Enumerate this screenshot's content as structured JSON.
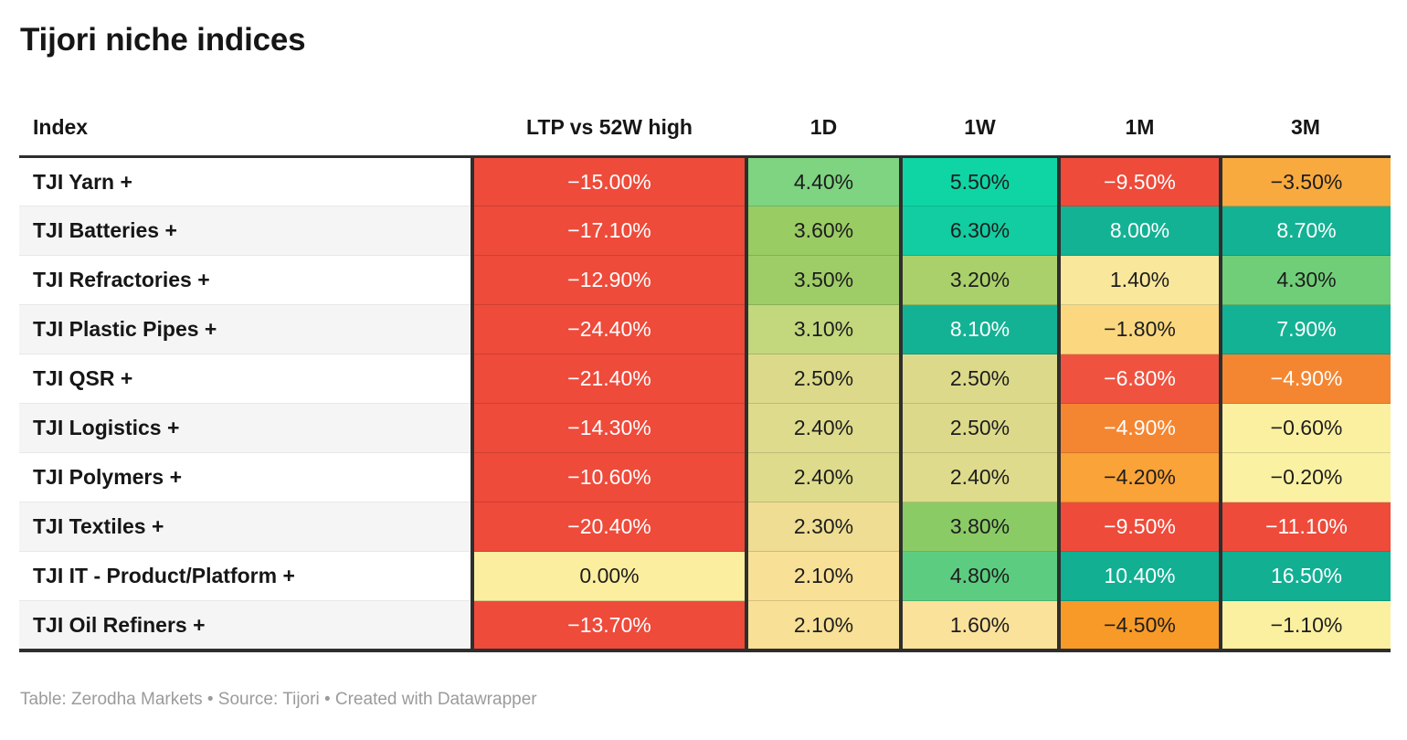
{
  "title": "Tijori niche indices",
  "footer": "Table: Zerodha Markets • Source: Tijori • Created with Datawrapper",
  "colors": {
    "accent_dark_border": "#2e2e2e",
    "negative_red": "#ee4b3b",
    "positive_teal": "#14b294",
    "neutral_yellow": "#fbee9e",
    "dark_text": "#1d1d1d",
    "light_text": "#ffffff",
    "row_stripe": "#f5f5f5",
    "footer_gray": "#9b9b9b"
  },
  "table": {
    "columns": [
      {
        "key": "index",
        "label": "Index"
      },
      {
        "key": "ltp-vs-52w-high",
        "label": "LTP vs 52W high"
      },
      {
        "key": "1d",
        "label": "1D"
      },
      {
        "key": "1w",
        "label": "1W"
      },
      {
        "key": "1m",
        "label": "1M"
      },
      {
        "key": "3m",
        "label": "3M"
      }
    ],
    "rows": [
      {
        "index": "TJI Yarn +",
        "cells": [
          {
            "v": "−15.00%",
            "bg": "#ee4b3b",
            "fg": "#ffffff"
          },
          {
            "v": "4.40%",
            "bg": "#7ed480",
            "fg": "#1d1d1d"
          },
          {
            "v": "5.50%",
            "bg": "#0fd5a5",
            "fg": "#1d1d1d"
          },
          {
            "v": "−9.50%",
            "bg": "#ee4b3b",
            "fg": "#ffffff"
          },
          {
            "v": "−3.50%",
            "bg": "#f9aa3f",
            "fg": "#1d1d1d"
          }
        ]
      },
      {
        "index": "TJI Batteries +",
        "cells": [
          {
            "v": "−17.10%",
            "bg": "#ee4b3b",
            "fg": "#ffffff"
          },
          {
            "v": "3.60%",
            "bg": "#9acc64",
            "fg": "#1d1d1d"
          },
          {
            "v": "6.30%",
            "bg": "#12cda1",
            "fg": "#1d1d1d"
          },
          {
            "v": "8.00%",
            "bg": "#14b294",
            "fg": "#ffffff"
          },
          {
            "v": "8.70%",
            "bg": "#14b294",
            "fg": "#ffffff"
          }
        ]
      },
      {
        "index": "TJI Refractories +",
        "cells": [
          {
            "v": "−12.90%",
            "bg": "#ee4b3b",
            "fg": "#ffffff"
          },
          {
            "v": "3.50%",
            "bg": "#9ecd67",
            "fg": "#1d1d1d"
          },
          {
            "v": "3.20%",
            "bg": "#aad06c",
            "fg": "#1d1d1d"
          },
          {
            "v": "1.40%",
            "bg": "#f9e79c",
            "fg": "#1d1d1d"
          },
          {
            "v": "4.30%",
            "bg": "#70ce78",
            "fg": "#1d1d1d"
          }
        ]
      },
      {
        "index": "TJI Plastic Pipes +",
        "cells": [
          {
            "v": "−24.40%",
            "bg": "#ee4b3b",
            "fg": "#ffffff"
          },
          {
            "v": "3.10%",
            "bg": "#c3d77d",
            "fg": "#1d1d1d"
          },
          {
            "v": "8.10%",
            "bg": "#14b294",
            "fg": "#ffffff"
          },
          {
            "v": "−1.80%",
            "bg": "#fbd87f",
            "fg": "#1d1d1d"
          },
          {
            "v": "7.90%",
            "bg": "#14b294",
            "fg": "#ffffff"
          }
        ]
      },
      {
        "index": "TJI QSR +",
        "cells": [
          {
            "v": "−21.40%",
            "bg": "#ee4b3b",
            "fg": "#ffffff"
          },
          {
            "v": "2.50%",
            "bg": "#dcda8a",
            "fg": "#1d1d1d"
          },
          {
            "v": "2.50%",
            "bg": "#dcda8a",
            "fg": "#1d1d1d"
          },
          {
            "v": "−6.80%",
            "bg": "#ef5340",
            "fg": "#ffffff"
          },
          {
            "v": "−4.90%",
            "bg": "#f58631",
            "fg": "#ffffff"
          }
        ]
      },
      {
        "index": "TJI Logistics +",
        "cells": [
          {
            "v": "−14.30%",
            "bg": "#ee4b3b",
            "fg": "#ffffff"
          },
          {
            "v": "2.40%",
            "bg": "#dedb8c",
            "fg": "#1d1d1d"
          },
          {
            "v": "2.50%",
            "bg": "#dcda8a",
            "fg": "#1d1d1d"
          },
          {
            "v": "−4.90%",
            "bg": "#f58631",
            "fg": "#ffffff"
          },
          {
            "v": "−0.60%",
            "bg": "#fbf0a0",
            "fg": "#1d1d1d"
          }
        ]
      },
      {
        "index": "TJI Polymers +",
        "cells": [
          {
            "v": "−10.60%",
            "bg": "#ee4b3b",
            "fg": "#ffffff"
          },
          {
            "v": "2.40%",
            "bg": "#dedb8c",
            "fg": "#1d1d1d"
          },
          {
            "v": "2.40%",
            "bg": "#dedb8c",
            "fg": "#1d1d1d"
          },
          {
            "v": "−4.20%",
            "bg": "#f9a338",
            "fg": "#1d1d1d"
          },
          {
            "v": "−0.20%",
            "bg": "#fbf1a2",
            "fg": "#1d1d1d"
          }
        ]
      },
      {
        "index": "TJI Textiles +",
        "cells": [
          {
            "v": "−20.40%",
            "bg": "#ee4b3b",
            "fg": "#ffffff"
          },
          {
            "v": "2.30%",
            "bg": "#eedd92",
            "fg": "#1d1d1d"
          },
          {
            "v": "3.80%",
            "bg": "#8acb66",
            "fg": "#1d1d1d"
          },
          {
            "v": "−9.50%",
            "bg": "#ee4b3b",
            "fg": "#ffffff"
          },
          {
            "v": "−11.10%",
            "bg": "#ee4b3b",
            "fg": "#ffffff"
          }
        ]
      },
      {
        "index": "TJI IT - Product/Platform +",
        "cells": [
          {
            "v": "0.00%",
            "bg": "#fbee9e",
            "fg": "#1d1d1d"
          },
          {
            "v": "2.10%",
            "bg": "#f8e096",
            "fg": "#1d1d1d"
          },
          {
            "v": "4.80%",
            "bg": "#5ccd80",
            "fg": "#1d1d1d"
          },
          {
            "v": "10.40%",
            "bg": "#12af93",
            "fg": "#ffffff"
          },
          {
            "v": "16.50%",
            "bg": "#12af93",
            "fg": "#ffffff"
          }
        ]
      },
      {
        "index": "TJI Oil Refiners +",
        "cells": [
          {
            "v": "−13.70%",
            "bg": "#ee4b3b",
            "fg": "#ffffff"
          },
          {
            "v": "2.10%",
            "bg": "#f8e096",
            "fg": "#1d1d1d"
          },
          {
            "v": "1.60%",
            "bg": "#fae29b",
            "fg": "#1d1d1d"
          },
          {
            "v": "−4.50%",
            "bg": "#f89a28",
            "fg": "#1d1d1d"
          },
          {
            "v": "−1.10%",
            "bg": "#fbf0a0",
            "fg": "#1d1d1d"
          }
        ]
      }
    ]
  },
  "chart_data": {
    "type": "table",
    "title": "Tijori niche indices",
    "heatmap": true,
    "colorscale": "red-yellow-green",
    "columns": [
      "Index",
      "LTP vs 52W high",
      "1D",
      "1W",
      "1M",
      "3M"
    ],
    "rows": [
      [
        "TJI Yarn +",
        -15.0,
        4.4,
        5.5,
        -9.5,
        -3.5
      ],
      [
        "TJI Batteries +",
        -17.1,
        3.6,
        6.3,
        8.0,
        8.7
      ],
      [
        "TJI Refractories +",
        -12.9,
        3.5,
        3.2,
        1.4,
        4.3
      ],
      [
        "TJI Plastic Pipes +",
        -24.4,
        3.1,
        8.1,
        -1.8,
        7.9
      ],
      [
        "TJI QSR +",
        -21.4,
        2.5,
        2.5,
        -6.8,
        -4.9
      ],
      [
        "TJI Logistics +",
        -14.3,
        2.4,
        2.5,
        -4.9,
        -0.6
      ],
      [
        "TJI Polymers +",
        -10.6,
        2.4,
        2.4,
        -4.2,
        -0.2
      ],
      [
        "TJI Textiles +",
        -20.4,
        2.3,
        3.8,
        -9.5,
        -11.1
      ],
      [
        "TJI IT - Product/Platform +",
        0.0,
        2.1,
        4.8,
        10.4,
        16.5
      ],
      [
        "TJI Oil Refiners +",
        -13.7,
        2.1,
        1.6,
        -4.5,
        -1.1
      ]
    ],
    "units": "percent"
  }
}
